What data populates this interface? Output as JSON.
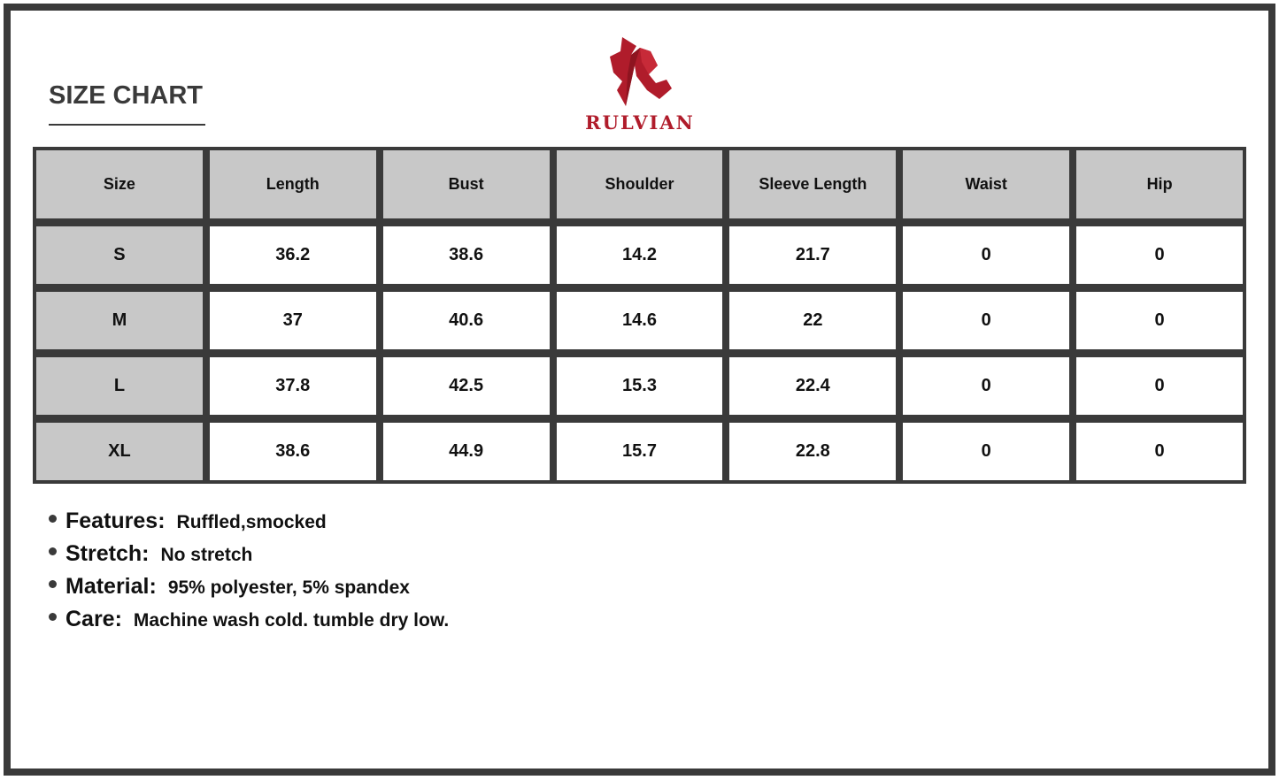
{
  "title": "SIZE CHART",
  "brand": {
    "name": "RULVIAN",
    "color": "#b01c2b"
  },
  "table": {
    "headers": [
      "Size",
      "Length",
      "Bust",
      "Shoulder",
      "Sleeve Length",
      "Waist",
      "Hip"
    ],
    "rows": [
      [
        "S",
        "36.2",
        "38.6",
        "14.2",
        "21.7",
        "0",
        "0"
      ],
      [
        "M",
        "37",
        "40.6",
        "14.6",
        "22",
        "0",
        "0"
      ],
      [
        "L",
        "37.8",
        "42.5",
        "15.3",
        "22.4",
        "0",
        "0"
      ],
      [
        "XL",
        "38.6",
        "44.9",
        "15.7",
        "22.8",
        "0",
        "0"
      ]
    ]
  },
  "details": [
    {
      "label": "Features:",
      "value": "Ruffled,smocked"
    },
    {
      "label": "Stretch:",
      "value": "No stretch"
    },
    {
      "label": "Material:",
      "value": "95% polyester, 5% spandex"
    },
    {
      "label": "Care:",
      "value": "Machine wash cold. tumble dry low."
    }
  ]
}
